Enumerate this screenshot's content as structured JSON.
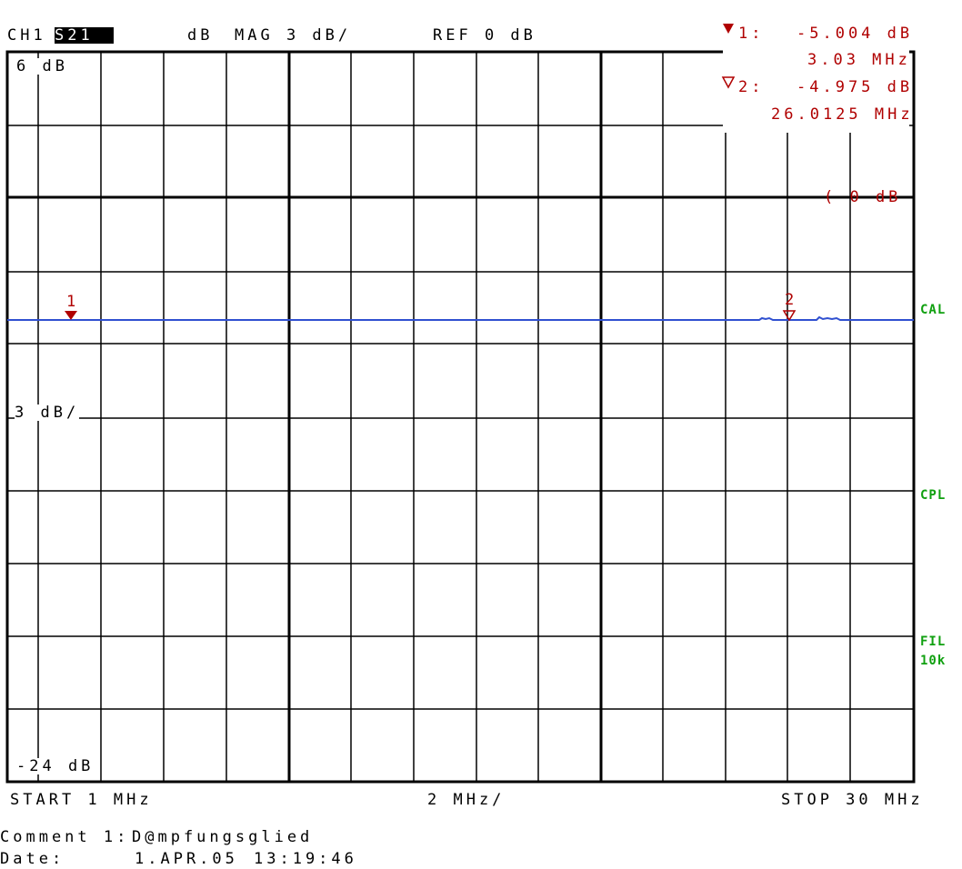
{
  "header": {
    "channel": "CH1",
    "parameter": "S21",
    "unit": "dB",
    "format": "MAG 3 dB/",
    "reference": "REF 0 dB"
  },
  "markers": [
    {
      "id": "1",
      "label": "1:",
      "value": "-5.004 dB",
      "frequency": "3.03 MHz"
    },
    {
      "id": "2",
      "label": "2:",
      "value": "-4.975 dB",
      "frequency": "26.0125 MHz"
    }
  ],
  "reference_marker": "( 0 dB",
  "y_axis": {
    "top": "6 dB",
    "scale": "3 dB/",
    "bottom": "-24 dB"
  },
  "side_labels": [
    "CAL",
    "CPL",
    "FIL",
    "10k"
  ],
  "x_axis": {
    "start": "START 1 MHz",
    "scale": "2 MHz/",
    "stop": "STOP 30 MHz"
  },
  "footer": {
    "comment_label": "Comment 1:",
    "comment": "D@mpfungsglied",
    "date_label": "Date:",
    "date": "1.APR.05",
    "time": "13:19:46"
  }
}
